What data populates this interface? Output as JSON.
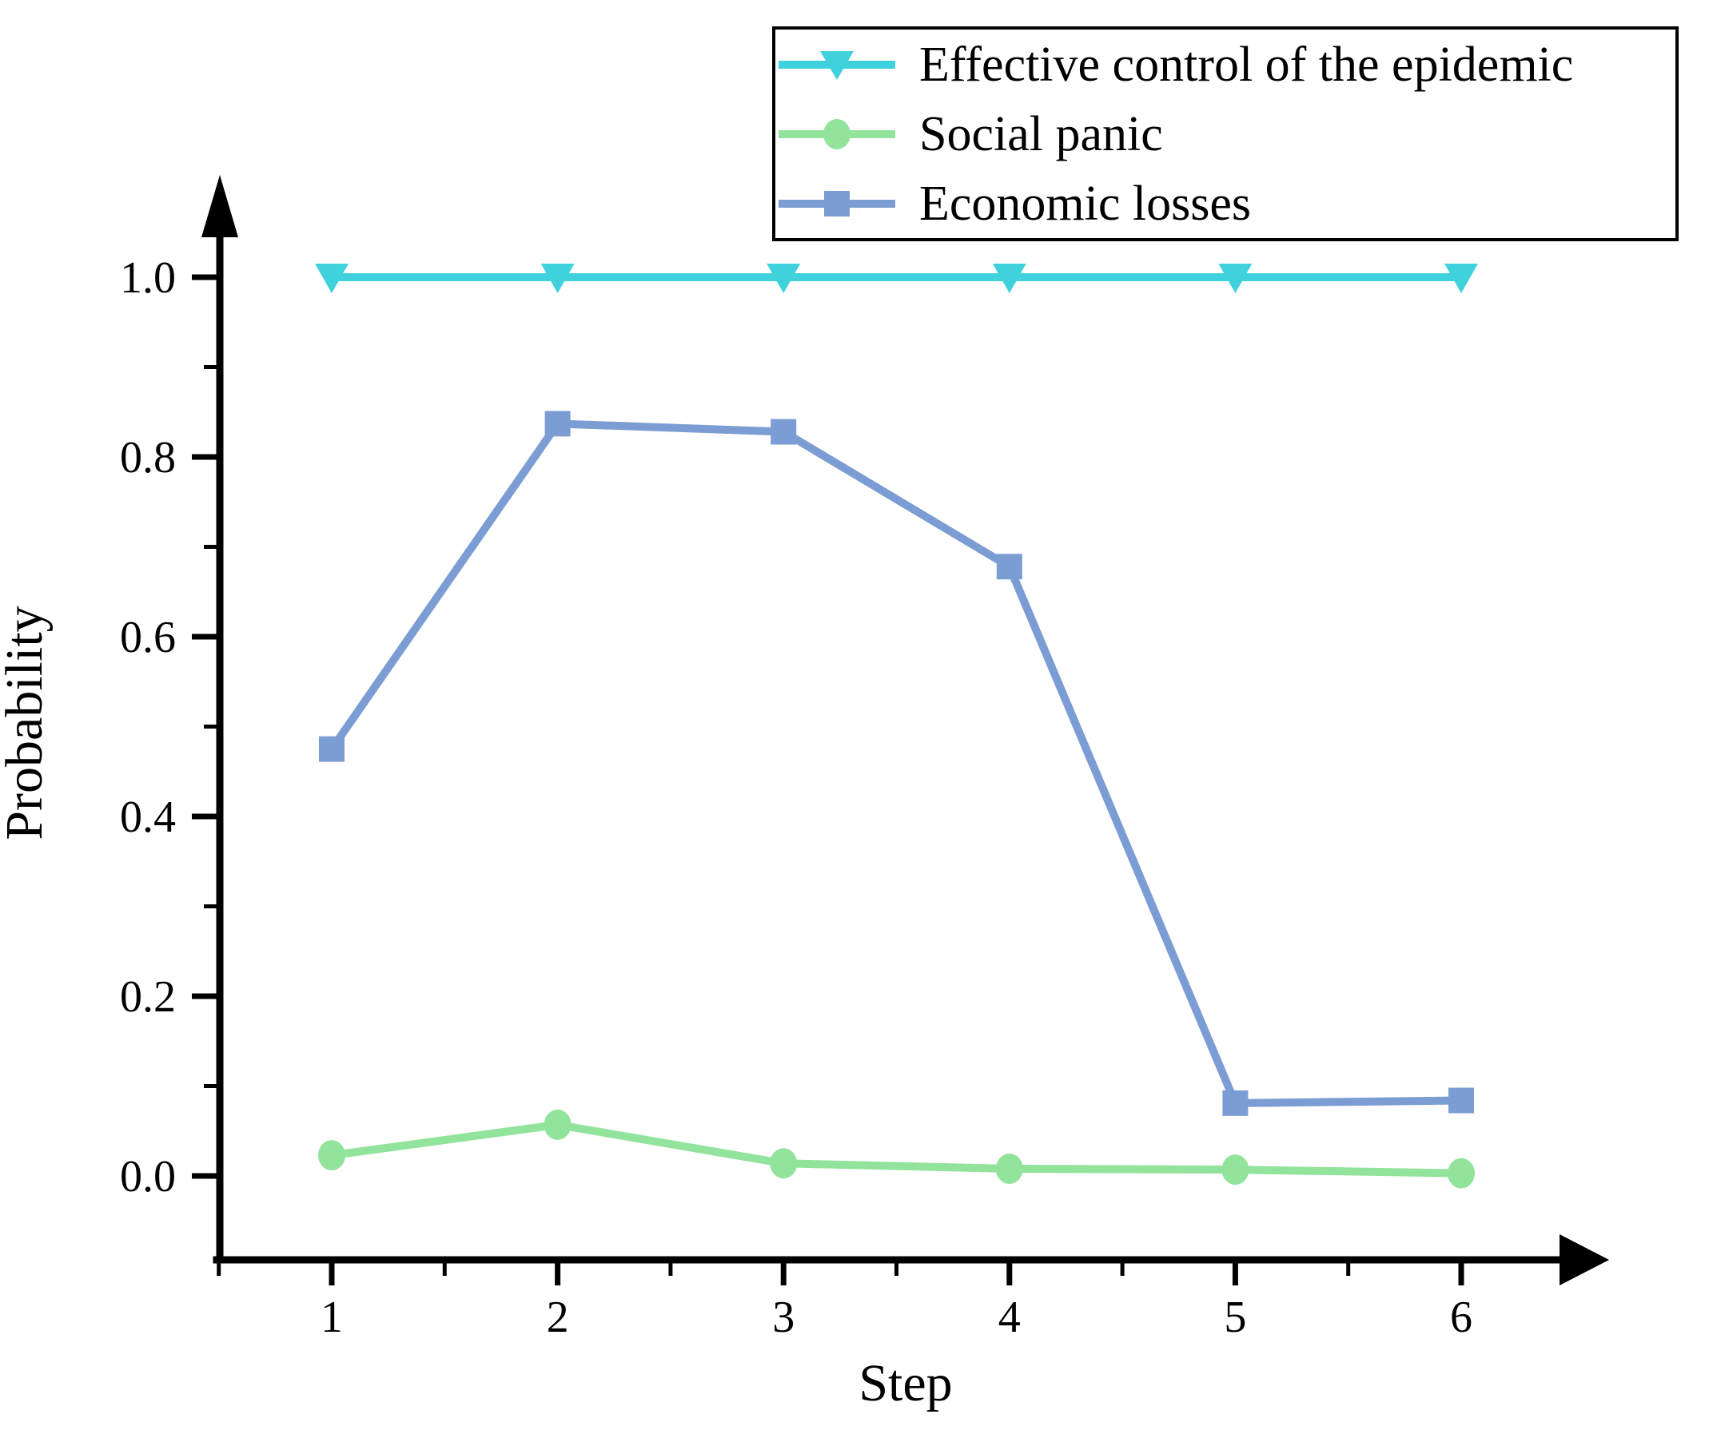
{
  "chart_data": {
    "type": "line",
    "title": "",
    "xlabel": "Step",
    "ylabel": "Probability",
    "x": [
      1,
      2,
      3,
      4,
      5,
      6
    ],
    "xtick_labels": [
      "1",
      "2",
      "3",
      "4",
      "5",
      "6"
    ],
    "yticks": [
      0.0,
      0.2,
      0.4,
      0.6,
      0.8,
      1.0
    ],
    "ytick_labels": [
      "0.0",
      "0.2",
      "0.4",
      "0.6",
      "0.8",
      "1.0"
    ],
    "xlim": [
      0.5,
      6.6
    ],
    "ylim": [
      -0.09,
      1.09
    ],
    "grid": false,
    "legend_position": "top-right",
    "axis_color": "#000000",
    "series": [
      {
        "name": "Effective control of the epidemic",
        "marker": "triangle-down",
        "color": "#3fd2dc",
        "values": [
          1.0,
          1.0,
          1.0,
          1.0,
          1.0,
          1.0
        ]
      },
      {
        "name": "Social panic",
        "marker": "circle",
        "color": "#92e39b",
        "values": [
          0.023,
          0.057,
          0.014,
          0.008,
          0.007,
          0.003
        ]
      },
      {
        "name": "Economic losses",
        "marker": "square",
        "color": "#7c9dd4",
        "values": [
          0.475,
          0.837,
          0.828,
          0.678,
          0.081,
          0.084
        ]
      }
    ]
  }
}
